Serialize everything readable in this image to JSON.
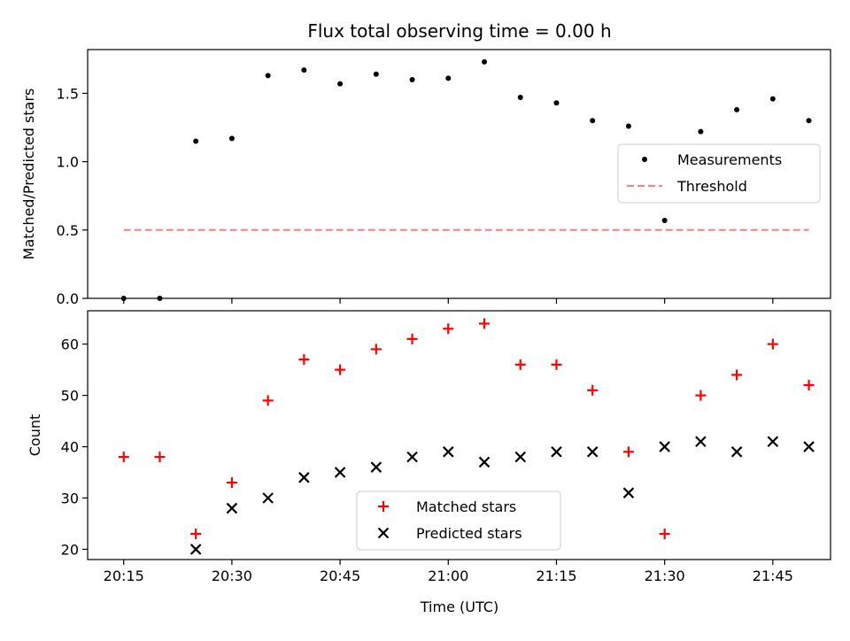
{
  "figure": {
    "title": "Flux total observing time = 0.00 h",
    "xlabel": "Time (UTC)"
  },
  "chart_data": [
    {
      "type": "scatter",
      "ylabel": "Matched/Predicted stars",
      "ylim": [
        0,
        1.82
      ],
      "yticks": [
        0.0,
        0.5,
        1.0,
        1.5
      ],
      "ytick_labels": [
        "0.0",
        "0.5",
        "1.0",
        "1.5"
      ],
      "xlim": [
        "20:10",
        "21:53"
      ],
      "xticks": [
        "20:15",
        "20:30",
        "20:45",
        "21:00",
        "21:15",
        "21:30",
        "21:45"
      ],
      "legend_position": "center-right",
      "series": [
        {
          "name": "Measurements",
          "marker": "dot",
          "color": "#000000",
          "x": [
            "20:15",
            "20:20",
            "20:25",
            "20:30",
            "20:35",
            "20:40",
            "20:45",
            "20:50",
            "20:55",
            "21:00",
            "21:05",
            "21:10",
            "21:15",
            "21:20",
            "21:25",
            "21:30",
            "21:35",
            "21:40",
            "21:45",
            "21:50"
          ],
          "y": [
            0.0,
            0.0,
            1.15,
            1.17,
            1.63,
            1.67,
            1.57,
            1.64,
            1.6,
            1.61,
            1.73,
            1.47,
            1.43,
            1.3,
            1.26,
            0.57,
            1.22,
            1.38,
            1.46,
            1.3
          ]
        },
        {
          "name": "Threshold",
          "style": "dashed",
          "color": "#ff7f7f",
          "x": [
            "20:15",
            "21:50"
          ],
          "y": [
            0.5,
            0.5
          ]
        }
      ]
    },
    {
      "type": "scatter",
      "ylabel": "Count",
      "ylim": [
        18,
        66.5
      ],
      "yticks": [
        20,
        30,
        40,
        50,
        60
      ],
      "ytick_labels": [
        "20",
        "30",
        "40",
        "50",
        "60"
      ],
      "xlim": [
        "20:10",
        "21:53"
      ],
      "xticks": [
        "20:15",
        "20:30",
        "20:45",
        "21:00",
        "21:15",
        "21:30",
        "21:45"
      ],
      "xtick_labels": [
        "20:15",
        "20:30",
        "20:45",
        "21:00",
        "21:15",
        "21:30",
        "21:45"
      ],
      "legend_position": "lower-center",
      "series": [
        {
          "name": "Matched stars",
          "marker": "plus",
          "color": "#ff0000",
          "x": [
            "20:15",
            "20:20",
            "20:25",
            "20:30",
            "20:35",
            "20:40",
            "20:45",
            "20:50",
            "20:55",
            "21:00",
            "21:05",
            "21:10",
            "21:15",
            "21:20",
            "21:25",
            "21:30",
            "21:35",
            "21:40",
            "21:45",
            "21:50"
          ],
          "y": [
            38,
            38,
            23,
            33,
            49,
            57,
            55,
            59,
            61,
            63,
            64,
            56,
            56,
            51,
            39,
            23,
            50,
            54,
            60,
            52
          ]
        },
        {
          "name": "Predicted stars",
          "marker": "x",
          "color": "#000000",
          "x": [
            "20:25",
            "20:30",
            "20:35",
            "20:40",
            "20:45",
            "20:50",
            "20:55",
            "21:00",
            "21:05",
            "21:10",
            "21:15",
            "21:20",
            "21:25",
            "21:30",
            "21:35",
            "21:40",
            "21:45",
            "21:50"
          ],
          "y": [
            20,
            28,
            30,
            34,
            35,
            36,
            38,
            39,
            37,
            38,
            39,
            39,
            31,
            40,
            41,
            39,
            41,
            40
          ]
        }
      ]
    }
  ]
}
